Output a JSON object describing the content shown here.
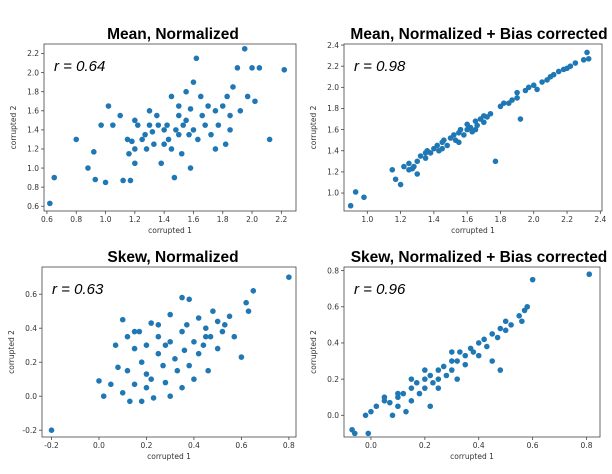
{
  "chart_data": [
    {
      "type": "scatter",
      "title": "Mean, Normalized",
      "xlabel": "corrupted 1",
      "ylabel": "corrupted 2",
      "annotation": "r = 0.64",
      "xlim": [
        0.58,
        2.3
      ],
      "ylim": [
        0.55,
        2.3
      ],
      "xticks": [
        "0.6",
        "0.8",
        "1.0",
        "1.2",
        "1.4",
        "1.6",
        "1.8",
        "2.0",
        "2.2"
      ],
      "xtick_values": [
        0.6,
        0.8,
        1.0,
        1.2,
        1.4,
        1.6,
        1.8,
        2.0,
        2.2
      ],
      "yticks": [
        "0.6",
        "0.8",
        "1.0",
        "1.2",
        "1.4",
        "1.6",
        "1.8",
        "2.0",
        "2.2"
      ],
      "ytick_values": [
        0.6,
        0.8,
        1.0,
        1.2,
        1.4,
        1.6,
        1.8,
        2.0,
        2.2
      ],
      "marker_color": "#1f77b4",
      "points": [
        [
          0.62,
          0.63
        ],
        [
          0.65,
          0.9
        ],
        [
          0.8,
          1.3
        ],
        [
          0.88,
          1.0
        ],
        [
          0.92,
          1.17
        ],
        [
          0.93,
          0.88
        ],
        [
          0.97,
          1.45
        ],
        [
          1.0,
          0.85
        ],
        [
          1.02,
          1.65
        ],
        [
          1.05,
          1.45
        ],
        [
          1.1,
          1.55
        ],
        [
          1.12,
          0.87
        ],
        [
          1.15,
          1.3
        ],
        [
          1.16,
          1.15
        ],
        [
          1.17,
          0.87
        ],
        [
          1.18,
          1.28
        ],
        [
          1.2,
          1.2
        ],
        [
          1.2,
          1.5
        ],
        [
          1.22,
          1.45
        ],
        [
          1.25,
          1.3
        ],
        [
          1.27,
          1.35
        ],
        [
          1.28,
          1.2
        ],
        [
          1.3,
          1.6
        ],
        [
          1.32,
          1.38
        ],
        [
          1.33,
          1.25
        ],
        [
          1.35,
          1.55
        ],
        [
          1.36,
          1.45
        ],
        [
          1.38,
          1.05
        ],
        [
          1.4,
          1.4
        ],
        [
          1.42,
          1.45
        ],
        [
          1.43,
          1.3
        ],
        [
          1.45,
          1.75
        ],
        [
          1.45,
          1.2
        ],
        [
          1.47,
          0.9
        ],
        [
          1.48,
          1.4
        ],
        [
          1.5,
          1.65
        ],
        [
          1.5,
          1.35
        ],
        [
          1.52,
          1.15
        ],
        [
          1.53,
          1.45
        ],
        [
          1.55,
          1.8
        ],
        [
          1.55,
          1.5
        ],
        [
          1.57,
          1.35
        ],
        [
          1.58,
          1.62
        ],
        [
          1.6,
          1.4
        ],
        [
          1.6,
          1.9
        ],
        [
          1.62,
          2.15
        ],
        [
          1.63,
          1.3
        ],
        [
          1.65,
          1.75
        ],
        [
          1.66,
          1.55
        ],
        [
          1.68,
          1.45
        ],
        [
          1.7,
          1.65
        ],
        [
          1.72,
          1.35
        ],
        [
          1.75,
          1.2
        ],
        [
          1.77,
          1.45
        ],
        [
          1.8,
          1.65
        ],
        [
          1.82,
          1.25
        ],
        [
          1.83,
          1.75
        ],
        [
          1.85,
          1.55
        ],
        [
          1.87,
          1.85
        ],
        [
          1.9,
          2.05
        ],
        [
          1.92,
          1.6
        ],
        [
          1.95,
          2.25
        ],
        [
          1.97,
          1.75
        ],
        [
          2.0,
          2.05
        ],
        [
          2.02,
          1.7
        ],
        [
          2.05,
          2.05
        ],
        [
          2.12,
          1.3
        ],
        [
          2.22,
          2.03
        ],
        [
          1.4,
          1.25
        ],
        [
          1.3,
          1.45
        ],
        [
          1.2,
          1.05
        ],
        [
          1.58,
          1.0
        ],
        [
          1.85,
          1.4
        ],
        [
          1.75,
          1.6
        ],
        [
          1.5,
          1.55
        ]
      ]
    },
    {
      "type": "scatter",
      "title": "Mean, Normalized + Bias corrected",
      "xlabel": "corrupted 1",
      "ylabel": "corrupted 2",
      "annotation": "r = 0.98",
      "xlim": [
        0.86,
        2.41
      ],
      "ylim": [
        0.83,
        2.41
      ],
      "xticks": [
        "1.0",
        "1.2",
        "1.4",
        "1.6",
        "1.8",
        "2.0",
        "2.2",
        "2.4"
      ],
      "xtick_values": [
        1.0,
        1.2,
        1.4,
        1.6,
        1.8,
        2.0,
        2.2,
        2.4
      ],
      "yticks": [
        "1.0",
        "1.2",
        "1.4",
        "1.6",
        "1.8",
        "2.0",
        "2.2",
        "2.4"
      ],
      "ytick_values": [
        1.0,
        1.2,
        1.4,
        1.6,
        1.8,
        2.0,
        2.2,
        2.4
      ],
      "marker_color": "#1f77b4",
      "points": [
        [
          0.9,
          0.88
        ],
        [
          0.93,
          1.01
        ],
        [
          0.98,
          0.96
        ],
        [
          1.15,
          1.22
        ],
        [
          1.17,
          1.13
        ],
        [
          1.2,
          1.08
        ],
        [
          1.22,
          1.25
        ],
        [
          1.25,
          1.28
        ],
        [
          1.27,
          1.23
        ],
        [
          1.3,
          1.3
        ],
        [
          1.3,
          1.18
        ],
        [
          1.32,
          1.35
        ],
        [
          1.35,
          1.33
        ],
        [
          1.36,
          1.4
        ],
        [
          1.38,
          1.38
        ],
        [
          1.4,
          1.42
        ],
        [
          1.42,
          1.45
        ],
        [
          1.43,
          1.4
        ],
        [
          1.45,
          1.48
        ],
        [
          1.46,
          1.5
        ],
        [
          1.48,
          1.45
        ],
        [
          1.5,
          1.52
        ],
        [
          1.52,
          1.55
        ],
        [
          1.53,
          1.5
        ],
        [
          1.55,
          1.57
        ],
        [
          1.56,
          1.6
        ],
        [
          1.58,
          1.55
        ],
        [
          1.6,
          1.6
        ],
        [
          1.6,
          1.65
        ],
        [
          1.62,
          1.62
        ],
        [
          1.63,
          1.58
        ],
        [
          1.65,
          1.68
        ],
        [
          1.66,
          1.64
        ],
        [
          1.68,
          1.7
        ],
        [
          1.7,
          1.73
        ],
        [
          1.7,
          1.67
        ],
        [
          1.72,
          1.72
        ],
        [
          1.74,
          1.75
        ],
        [
          1.77,
          1.3
        ],
        [
          1.8,
          1.82
        ],
        [
          1.82,
          1.85
        ],
        [
          1.85,
          1.85
        ],
        [
          1.87,
          1.88
        ],
        [
          1.9,
          1.9
        ],
        [
          1.9,
          1.95
        ],
        [
          1.92,
          1.7
        ],
        [
          1.95,
          1.97
        ],
        [
          1.97,
          2.0
        ],
        [
          2.0,
          2.02
        ],
        [
          2.02,
          1.98
        ],
        [
          2.05,
          2.05
        ],
        [
          2.08,
          2.07
        ],
        [
          2.1,
          2.1
        ],
        [
          2.12,
          2.12
        ],
        [
          2.15,
          2.15
        ],
        [
          2.18,
          2.17
        ],
        [
          2.2,
          2.18
        ],
        [
          2.22,
          2.2
        ],
        [
          2.25,
          2.23
        ],
        [
          2.3,
          2.26
        ],
        [
          2.32,
          2.33
        ],
        [
          2.33,
          2.27
        ],
        [
          1.55,
          1.48
        ],
        [
          1.45,
          1.42
        ],
        [
          1.65,
          1.6
        ],
        [
          1.35,
          1.38
        ],
        [
          1.25,
          1.22
        ],
        [
          1.28,
          1.25
        ]
      ]
    },
    {
      "type": "scatter",
      "title": "Skew, Normalized",
      "xlabel": "corrupted 1",
      "ylabel": "corrupted 2",
      "annotation": "r = 0.63",
      "xlim": [
        -0.24,
        0.83
      ],
      "ylim": [
        -0.24,
        0.76
      ],
      "xticks": [
        "-0.2",
        "0.0",
        "0.2",
        "0.4",
        "0.6",
        "0.8"
      ],
      "xtick_values": [
        -0.2,
        0.0,
        0.2,
        0.4,
        0.6,
        0.8
      ],
      "yticks": [
        "-0.2",
        "0.0",
        "0.2",
        "0.4",
        "0.6"
      ],
      "ytick_values": [
        -0.2,
        0.0,
        0.2,
        0.4,
        0.6
      ],
      "marker_color": "#1f77b4",
      "points": [
        [
          -0.2,
          -0.2
        ],
        [
          0.0,
          0.09
        ],
        [
          0.02,
          0.0
        ],
        [
          0.05,
          0.07
        ],
        [
          0.07,
          0.3
        ],
        [
          0.08,
          0.17
        ],
        [
          0.1,
          0.45
        ],
        [
          0.1,
          0.02
        ],
        [
          0.12,
          0.35
        ],
        [
          0.12,
          0.15
        ],
        [
          0.13,
          -0.03
        ],
        [
          0.15,
          0.28
        ],
        [
          0.15,
          0.07
        ],
        [
          0.17,
          0.38
        ],
        [
          0.18,
          0.2
        ],
        [
          0.18,
          -0.03
        ],
        [
          0.2,
          0.3
        ],
        [
          0.2,
          0.13
        ],
        [
          0.22,
          0.43
        ],
        [
          0.22,
          0.1
        ],
        [
          0.23,
          -0.01
        ],
        [
          0.25,
          0.25
        ],
        [
          0.25,
          0.35
        ],
        [
          0.27,
          0.18
        ],
        [
          0.28,
          0.08
        ],
        [
          0.3,
          0.32
        ],
        [
          0.3,
          0.48
        ],
        [
          0.3,
          0.0
        ],
        [
          0.32,
          0.22
        ],
        [
          0.33,
          0.15
        ],
        [
          0.35,
          0.38
        ],
        [
          0.35,
          0.05
        ],
        [
          0.36,
          0.27
        ],
        [
          0.37,
          0.42
        ],
        [
          0.38,
          0.57
        ],
        [
          0.38,
          0.18
        ],
        [
          0.4,
          0.32
        ],
        [
          0.4,
          0.1
        ],
        [
          0.42,
          0.25
        ],
        [
          0.42,
          0.46
        ],
        [
          0.44,
          0.3
        ],
        [
          0.45,
          0.4
        ],
        [
          0.46,
          0.15
        ],
        [
          0.47,
          0.35
        ],
        [
          0.48,
          0.5
        ],
        [
          0.5,
          0.28
        ],
        [
          0.5,
          0.44
        ],
        [
          0.52,
          0.38
        ],
        [
          0.53,
          0.42
        ],
        [
          0.55,
          0.47
        ],
        [
          0.57,
          0.35
        ],
        [
          0.6,
          0.23
        ],
        [
          0.62,
          0.55
        ],
        [
          0.63,
          0.5
        ],
        [
          0.65,
          0.62
        ],
        [
          0.8,
          0.7
        ],
        [
          0.35,
          0.58
        ],
        [
          0.25,
          0.42
        ],
        [
          0.45,
          0.35
        ],
        [
          0.2,
          0.05
        ],
        [
          0.15,
          0.38
        ],
        [
          0.28,
          0.3
        ]
      ]
    },
    {
      "type": "scatter",
      "title": "Skew, Normalized + Bias corrected",
      "xlabel": "corrupted 1",
      "ylabel": "corrupted 2",
      "annotation": "r = 0.96",
      "xlim": [
        -0.1,
        0.85
      ],
      "ylim": [
        -0.12,
        0.82
      ],
      "xticks": [
        "0.0",
        "0.2",
        "0.4",
        "0.6",
        "0.8"
      ],
      "xtick_values": [
        0.0,
        0.2,
        0.4,
        0.6,
        0.8
      ],
      "yticks": [
        "0.0",
        "0.2",
        "0.4",
        "0.6",
        "0.8"
      ],
      "ytick_values": [
        0.0,
        0.2,
        0.4,
        0.6,
        0.8
      ],
      "marker_color": "#1f77b4",
      "points": [
        [
          -0.07,
          -0.08
        ],
        [
          -0.06,
          -0.1
        ],
        [
          -0.02,
          0.0
        ],
        [
          -0.01,
          -0.1
        ],
        [
          0.0,
          0.02
        ],
        [
          0.02,
          0.05
        ],
        [
          0.05,
          0.08
        ],
        [
          0.07,
          0.07
        ],
        [
          0.08,
          0.0
        ],
        [
          0.1,
          0.1
        ],
        [
          0.1,
          0.05
        ],
        [
          0.12,
          0.12
        ],
        [
          0.13,
          0.02
        ],
        [
          0.15,
          0.15
        ],
        [
          0.15,
          0.08
        ],
        [
          0.17,
          0.18
        ],
        [
          0.18,
          0.12
        ],
        [
          0.2,
          0.2
        ],
        [
          0.2,
          0.15
        ],
        [
          0.22,
          0.22
        ],
        [
          0.22,
          0.05
        ],
        [
          0.23,
          0.18
        ],
        [
          0.25,
          0.25
        ],
        [
          0.25,
          0.2
        ],
        [
          0.27,
          0.27
        ],
        [
          0.28,
          0.22
        ],
        [
          0.3,
          0.3
        ],
        [
          0.3,
          0.25
        ],
        [
          0.32,
          0.3
        ],
        [
          0.32,
          0.2
        ],
        [
          0.33,
          0.35
        ],
        [
          0.35,
          0.33
        ],
        [
          0.35,
          0.28
        ],
        [
          0.37,
          0.37
        ],
        [
          0.38,
          0.35
        ],
        [
          0.4,
          0.4
        ],
        [
          0.4,
          0.33
        ],
        [
          0.42,
          0.42
        ],
        [
          0.43,
          0.38
        ],
        [
          0.45,
          0.45
        ],
        [
          0.47,
          0.43
        ],
        [
          0.48,
          0.48
        ],
        [
          0.5,
          0.47
        ],
        [
          0.5,
          0.52
        ],
        [
          0.52,
          0.5
        ],
        [
          0.55,
          0.55
        ],
        [
          0.56,
          0.52
        ],
        [
          0.57,
          0.58
        ],
        [
          0.58,
          0.6
        ],
        [
          0.45,
          0.3
        ],
        [
          0.48,
          0.25
        ],
        [
          0.6,
          0.75
        ],
        [
          0.81,
          0.78
        ],
        [
          0.15,
          0.2
        ],
        [
          0.25,
          0.15
        ],
        [
          0.3,
          0.35
        ],
        [
          0.2,
          0.25
        ],
        [
          0.1,
          0.12
        ],
        [
          0.05,
          0.1
        ]
      ]
    }
  ]
}
